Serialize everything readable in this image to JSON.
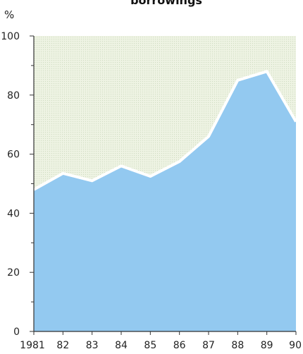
{
  "chart_data": {
    "type": "area",
    "title": "borrowings",
    "ylabel": "%",
    "xlabel": "",
    "x_tick_labels": [
      "1981",
      "82",
      "83",
      "84",
      "85",
      "86",
      "87",
      "88",
      "89",
      "90"
    ],
    "y_tick_labels": [
      "0",
      "20",
      "40",
      "60",
      "80",
      "100"
    ],
    "ylim": [
      0,
      100
    ],
    "grid": false,
    "series": [
      {
        "values": [
          48,
          53.5,
          51,
          56,
          52.5,
          57.5,
          66,
          85,
          88,
          71
        ]
      }
    ],
    "colors": {
      "area_fill": "#93c9f0",
      "upper_fill": "#e9efd9",
      "separator": "#ffffff",
      "axis": "#333333"
    }
  }
}
